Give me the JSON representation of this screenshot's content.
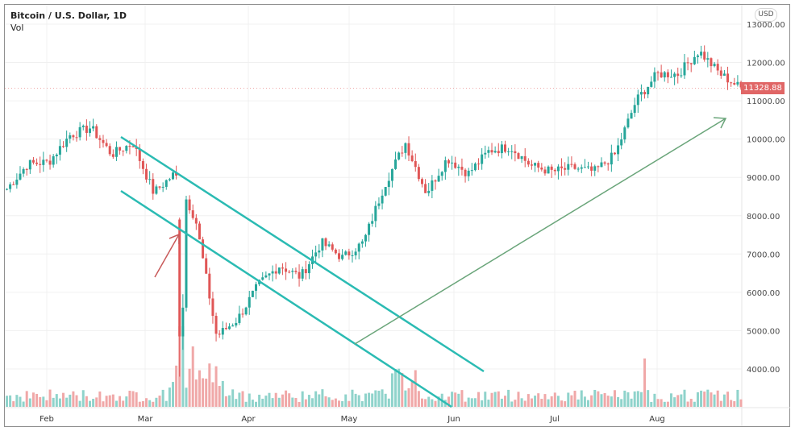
{
  "header": {
    "symbol_title": "Bitcoin / U.S. Dollar, 1D",
    "volume_label": "Vol",
    "currency_badge": "USD"
  },
  "last_price_badge": "11328.88",
  "colors": {
    "up": "#26a69a",
    "down": "#e05656",
    "up_volume": "#8fd3cb",
    "down_volume": "#f0a8a8",
    "channel_line": "#2bbbb3",
    "green_arrow": "#6aa57a",
    "red_arrow": "#c85a5a",
    "price_badge": "#e06666"
  },
  "chart_data": {
    "type": "candlestick",
    "title": "Bitcoin / U.S. Dollar, 1D",
    "ylabel": "USD",
    "ylim": [
      3300,
      13300
    ],
    "y_ticks": [
      "13000.00",
      "12000.00",
      "11000.00",
      "10000.00",
      "9000.00",
      "8000.00",
      "7000.00",
      "6000.00",
      "5000.00",
      "4000.00"
    ],
    "x_ticks": [
      "Feb",
      "Mar",
      "Apr",
      "May",
      "Jun",
      "Jul",
      "Aug"
    ],
    "grid": true,
    "last_price": 11328.88,
    "price_path_weekly_close": [
      {
        "x": "mid-Jan",
        "close": 8700
      },
      {
        "x": "late-Jan",
        "close": 9350
      },
      {
        "x": "Feb 1",
        "close": 9400
      },
      {
        "x": "Feb 10",
        "close": 10100
      },
      {
        "x": "Feb 14",
        "close": 10300
      },
      {
        "x": "Feb 20",
        "close": 9600
      },
      {
        "x": "Feb 25",
        "close": 9900
      },
      {
        "x": "Mar 1",
        "close": 8600
      },
      {
        "x": "Mar 7",
        "close": 9100
      },
      {
        "x": "Mar 10",
        "close": 7900
      },
      {
        "x": "Mar 12",
        "close": 4850
      },
      {
        "x": "Mar 16",
        "close": 5300
      },
      {
        "x": "Mar 20",
        "close": 6200
      },
      {
        "x": "Mar 25",
        "close": 6700
      },
      {
        "x": "Apr 1",
        "close": 6400
      },
      {
        "x": "Apr 7",
        "close": 7300
      },
      {
        "x": "Apr 15",
        "close": 6900
      },
      {
        "x": "Apr 22",
        "close": 7300
      },
      {
        "x": "Apr 29",
        "close": 8800
      },
      {
        "x": "May 7",
        "close": 9900
      },
      {
        "x": "May 12",
        "close": 8600
      },
      {
        "x": "May 20",
        "close": 9500
      },
      {
        "x": "May 27",
        "close": 9100
      },
      {
        "x": "Jun 2",
        "close": 9700
      },
      {
        "x": "Jun 10",
        "close": 9800
      },
      {
        "x": "Jun 20",
        "close": 9300
      },
      {
        "x": "Jun 30",
        "close": 9150
      },
      {
        "x": "Jul 10",
        "close": 9250
      },
      {
        "x": "Jul 20",
        "close": 9150
      },
      {
        "x": "Jul 25",
        "close": 9600
      },
      {
        "x": "Jul 28",
        "close": 11000
      },
      {
        "x": "Aug 2",
        "close": 11700
      },
      {
        "x": "Aug 10",
        "close": 11700
      },
      {
        "x": "Aug 17",
        "close": 12300
      },
      {
        "x": "Aug 22",
        "close": 11700
      },
      {
        "x": "Aug 25",
        "close": 11328.88
      }
    ],
    "annotations": [
      {
        "type": "trend-channel-upper",
        "from": {
          "date": "Feb 25",
          "price": 10100
        },
        "to": {
          "date": "Jun 15",
          "price": 4000
        },
        "color": "#2bbbb3"
      },
      {
        "type": "trend-channel-lower",
        "from": {
          "date": "Feb 25",
          "price": 8700
        },
        "to": {
          "date": "Jun 5",
          "price": 3100
        },
        "color": "#2bbbb3"
      },
      {
        "type": "arrow",
        "from": {
          "date": "Mar 3",
          "price": 6500
        },
        "to": {
          "date": "Mar 11",
          "price": 7600
        },
        "color": "#c85a5a"
      },
      {
        "type": "arrow",
        "from": {
          "date": "May 3",
          "price": 4700
        },
        "to": {
          "date": "Aug 22",
          "price": 10600
        },
        "color": "#6aa57a"
      }
    ],
    "volume": {
      "label": "Vol",
      "notes": "Volume spikes around Mar 12-13 (largest), moderate spike mid-May and late July"
    }
  }
}
